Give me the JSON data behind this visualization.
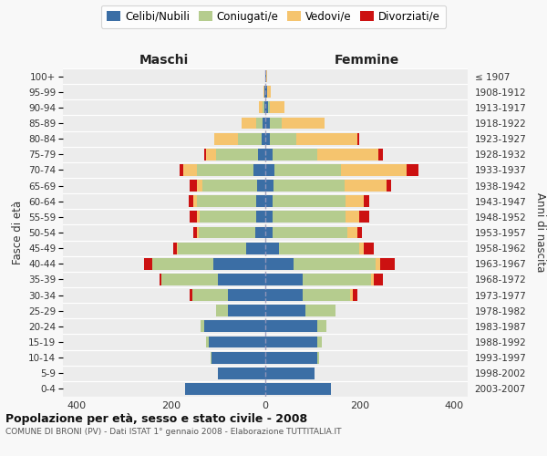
{
  "age_groups": [
    "0-4",
    "5-9",
    "10-14",
    "15-19",
    "20-24",
    "25-29",
    "30-34",
    "35-39",
    "40-44",
    "45-49",
    "50-54",
    "55-59",
    "60-64",
    "65-69",
    "70-74",
    "75-79",
    "80-84",
    "85-89",
    "90-94",
    "95-99",
    "100+"
  ],
  "birth_years": [
    "2003-2007",
    "1998-2002",
    "1993-1997",
    "1988-1992",
    "1983-1987",
    "1978-1982",
    "1973-1977",
    "1968-1972",
    "1963-1967",
    "1958-1962",
    "1953-1957",
    "1948-1952",
    "1943-1947",
    "1938-1942",
    "1933-1937",
    "1928-1932",
    "1923-1927",
    "1918-1922",
    "1913-1917",
    "1908-1912",
    "≤ 1907"
  ],
  "colors": {
    "celibi": "#3b6ea5",
    "coniugati": "#b5cc8e",
    "vedovi": "#f5c46e",
    "divorziati": "#cc1111"
  },
  "maschi": {
    "celibi": [
      170,
      100,
      115,
      120,
      130,
      80,
      80,
      100,
      110,
      40,
      22,
      20,
      20,
      18,
      25,
      15,
      8,
      5,
      2,
      1,
      0
    ],
    "coniugati": [
      0,
      0,
      2,
      5,
      8,
      25,
      75,
      120,
      130,
      145,
      120,
      120,
      125,
      115,
      120,
      90,
      50,
      15,
      3,
      1,
      0
    ],
    "vedovi": [
      0,
      0,
      0,
      0,
      0,
      0,
      0,
      0,
      0,
      2,
      3,
      5,
      8,
      12,
      30,
      20,
      50,
      30,
      8,
      2,
      0
    ],
    "divorziati": [
      0,
      0,
      0,
      0,
      0,
      0,
      5,
      5,
      18,
      8,
      8,
      15,
      10,
      15,
      8,
      5,
      0,
      0,
      0,
      0,
      0
    ]
  },
  "femmine": {
    "celibi": [
      140,
      105,
      110,
      110,
      110,
      85,
      80,
      80,
      60,
      30,
      15,
      15,
      15,
      18,
      20,
      15,
      10,
      10,
      5,
      3,
      1
    ],
    "coniugati": [
      0,
      0,
      5,
      10,
      20,
      65,
      100,
      145,
      175,
      170,
      160,
      155,
      155,
      150,
      140,
      95,
      55,
      25,
      5,
      1,
      0
    ],
    "vedovi": [
      0,
      0,
      0,
      0,
      0,
      0,
      5,
      5,
      10,
      10,
      20,
      30,
      40,
      90,
      140,
      130,
      130,
      90,
      30,
      8,
      2
    ],
    "divorziati": [
      0,
      0,
      0,
      0,
      0,
      0,
      10,
      20,
      30,
      20,
      10,
      20,
      10,
      10,
      25,
      10,
      5,
      0,
      0,
      0,
      0
    ]
  },
  "xlim": 430,
  "xticks": [
    -400,
    -200,
    0,
    200,
    400
  ],
  "title": "Popolazione per età, sesso e stato civile - 2008",
  "subtitle": "COMUNE DI BRONI (PV) - Dati ISTAT 1° gennaio 2008 - Elaborazione TUTTITALIA.IT",
  "ylabel": "Fasce di età",
  "ylabel_right": "Anni di nascita",
  "label_maschi": "Maschi",
  "label_femmine": "Femmine",
  "legend_labels": [
    "Celibi/Nubili",
    "Coniugati/e",
    "Vedovi/e",
    "Divorziati/e"
  ],
  "bg_color": "#f8f8f8",
  "plot_bg": "#ececec",
  "grid_color": "#ffffff",
  "center_line_color": "#9999bb"
}
